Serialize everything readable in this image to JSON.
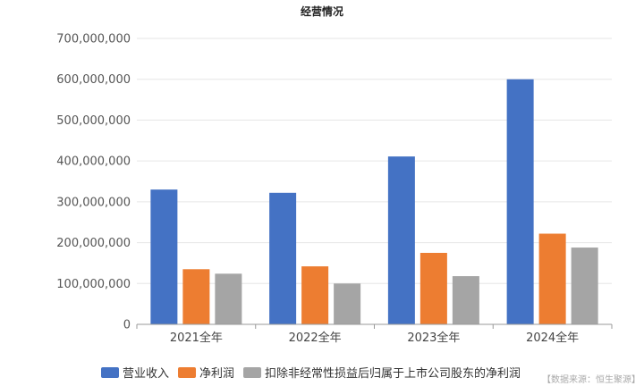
{
  "chart_data": {
    "type": "bar",
    "title": "经营情况",
    "categories": [
      "2021全年",
      "2022全年",
      "2023全年",
      "2024全年"
    ],
    "series": [
      {
        "name": "营业收入",
        "color": "#4472c4",
        "values": [
          330000000,
          322000000,
          411000000,
          600000000
        ]
      },
      {
        "name": "净利润",
        "color": "#ed7d31",
        "values": [
          135000000,
          142000000,
          175000000,
          222000000
        ]
      },
      {
        "name": "扣除非经常性损益后归属于上市公司股东的净利润",
        "color": "#a5a5a5",
        "values": [
          124000000,
          100000000,
          118000000,
          188000000
        ]
      }
    ],
    "ylim": [
      0,
      700000000
    ],
    "yticks": [
      "0",
      "100,000,000",
      "200,000,000",
      "300,000,000",
      "400,000,000",
      "500,000,000",
      "600,000,000",
      "700,000,000"
    ],
    "grid": true,
    "legend_position": "bottom",
    "source": "【数据来源：恒生聚源】"
  }
}
